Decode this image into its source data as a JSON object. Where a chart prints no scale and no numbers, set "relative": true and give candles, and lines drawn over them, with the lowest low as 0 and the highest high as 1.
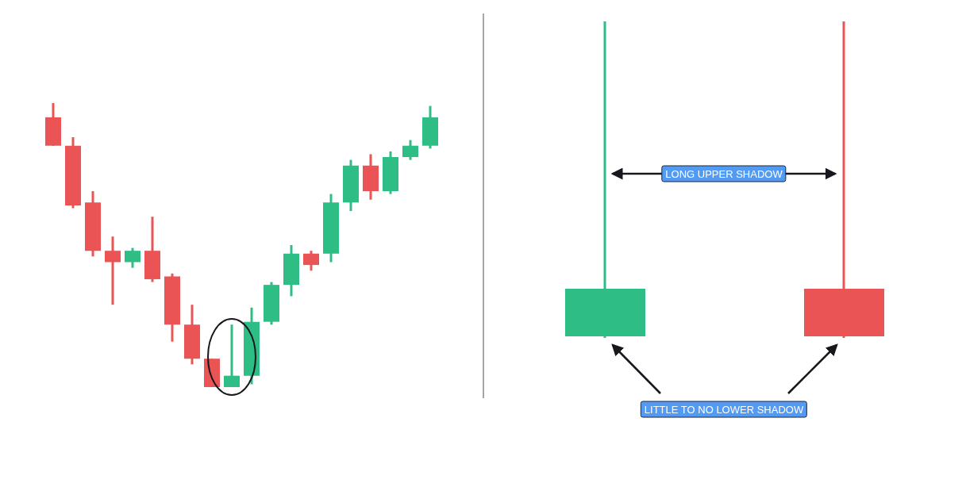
{
  "chart_data": [
    {
      "type": "candlestick",
      "relative": true,
      "categories": [
        null,
        null,
        null,
        null,
        null,
        null,
        null,
        null,
        null,
        null,
        null,
        null,
        null,
        null,
        null,
        null,
        null,
        null,
        null,
        null
      ],
      "ohlc": [
        [
          0.95,
          1.0,
          0.85,
          0.85
        ],
        [
          0.85,
          0.88,
          0.63,
          0.64
        ],
        [
          0.65,
          0.69,
          0.46,
          0.48
        ],
        [
          0.48,
          0.53,
          0.29,
          0.44
        ],
        [
          0.44,
          0.49,
          0.42,
          0.48
        ],
        [
          0.48,
          0.6,
          0.37,
          0.38
        ],
        [
          0.39,
          0.4,
          0.16,
          0.22
        ],
        [
          0.22,
          0.29,
          0.08,
          0.1
        ],
        [
          0.1,
          0.1,
          0,
          0
        ],
        [
          0,
          0.22,
          0,
          0.04
        ],
        [
          0.04,
          0.28,
          0.01,
          0.23
        ],
        [
          0.23,
          0.37,
          0.22,
          0.36
        ],
        [
          0.36,
          0.5,
          0.32,
          0.47
        ],
        [
          0.47,
          0.48,
          0.41,
          0.43
        ],
        [
          0.47,
          0.68,
          0.44,
          0.65
        ],
        [
          0.65,
          0.8,
          0.62,
          0.78
        ],
        [
          0.78,
          0.82,
          0.66,
          0.69
        ],
        [
          0.69,
          0.83,
          0.68,
          0.81
        ],
        [
          0.81,
          0.87,
          0.8,
          0.85
        ],
        [
          0.85,
          0.99,
          0.84,
          0.95
        ]
      ],
      "colors": [
        "#eb5454",
        "#eb5454",
        "#eb5454",
        "#eb5454",
        "#2ebd85",
        "#eb5454",
        "#eb5454",
        "#eb5454",
        "#eb5454",
        "#2ebd85",
        "#2ebd85",
        "#2ebd85",
        "#2ebd85",
        "#eb5454",
        "#2ebd85",
        "#2ebd85",
        "#eb5454",
        "#2ebd85",
        "#2ebd85",
        "#2ebd85"
      ]
    },
    {
      "type": "other",
      "annotations": [
        "LONG UPPER SHADOW",
        "LITTLE TO NO LOWER SHADOW"
      ]
    }
  ]
}
